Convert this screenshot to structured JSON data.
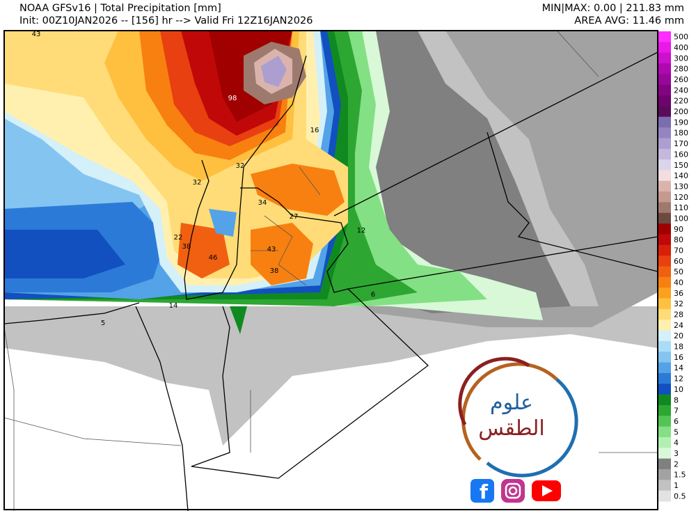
{
  "header": {
    "title": "NOAA GFSv16 | Total Precipitation [mm]",
    "init_line": "Init: 00Z10JAN2026 -- [156] hr --> Valid Fri 12Z16JAN2026",
    "minmax": "MIN|MAX: 0.00 | 211.83 mm",
    "area_avg": "AREA AVG: 11.46 mm"
  },
  "colorbar": {
    "levels": [
      {
        "label": "500",
        "color": "#ff2cff"
      },
      {
        "label": "400",
        "color": "#e81ae8"
      },
      {
        "label": "300",
        "color": "#cc10cc"
      },
      {
        "label": "280",
        "color": "#b008b0"
      },
      {
        "label": "260",
        "color": "#980898"
      },
      {
        "label": "240",
        "color": "#820482"
      },
      {
        "label": "220",
        "color": "#6e046e"
      },
      {
        "label": "200",
        "color": "#5a0c5a"
      },
      {
        "label": "190",
        "color": "#7c6cb0"
      },
      {
        "label": "180",
        "color": "#9484c0"
      },
      {
        "label": "170",
        "color": "#ac9ece"
      },
      {
        "label": "160",
        "color": "#c4b8dc"
      },
      {
        "label": "150",
        "color": "#dcd4ea"
      },
      {
        "label": "140",
        "color": "#f2dede"
      },
      {
        "label": "130",
        "color": "#dab4ac"
      },
      {
        "label": "120",
        "color": "#c49a8e"
      },
      {
        "label": "110",
        "color": "#9e7a6e"
      },
      {
        "label": "100",
        "color": "#6c4a40"
      },
      {
        "label": "90",
        "color": "#a00000"
      },
      {
        "label": "80",
        "color": "#c00808"
      },
      {
        "label": "70",
        "color": "#d82008"
      },
      {
        "label": "60",
        "color": "#e84010"
      },
      {
        "label": "50",
        "color": "#f06010"
      },
      {
        "label": "40",
        "color": "#f88010"
      },
      {
        "label": "36",
        "color": "#fca020"
      },
      {
        "label": "32",
        "color": "#ffc040"
      },
      {
        "label": "28",
        "color": "#ffdc78"
      },
      {
        "label": "24",
        "color": "#fff0b0"
      },
      {
        "label": "20",
        "color": "#d4f0f8"
      },
      {
        "label": "18",
        "color": "#aadcf8"
      },
      {
        "label": "16",
        "color": "#84c4f0"
      },
      {
        "label": "14",
        "color": "#54a2e8"
      },
      {
        "label": "12",
        "color": "#2c7ad8"
      },
      {
        "label": "10",
        "color": "#1250c0"
      },
      {
        "label": "8",
        "color": "#108a20"
      },
      {
        "label": "7",
        "color": "#2ea632"
      },
      {
        "label": "6",
        "color": "#54c454"
      },
      {
        "label": "5",
        "color": "#84e084"
      },
      {
        "label": "4",
        "color": "#b2f0b2"
      },
      {
        "label": "3",
        "color": "#d8f8d8"
      },
      {
        "label": "2",
        "color": "#808080"
      },
      {
        "label": "1.5",
        "color": "#a2a2a2"
      },
      {
        "label": "1",
        "color": "#c2c2c2"
      },
      {
        "label": "0.5",
        "color": "#e2e2e2"
      }
    ]
  },
  "map_labels": [
    "43",
    "98",
    "16",
    "32",
    "32",
    "34",
    "27",
    "12",
    "22",
    "38",
    "46",
    "43",
    "38",
    "14",
    "6",
    "5"
  ],
  "logo": {
    "line1": "علوم",
    "line2": "الطقس"
  }
}
